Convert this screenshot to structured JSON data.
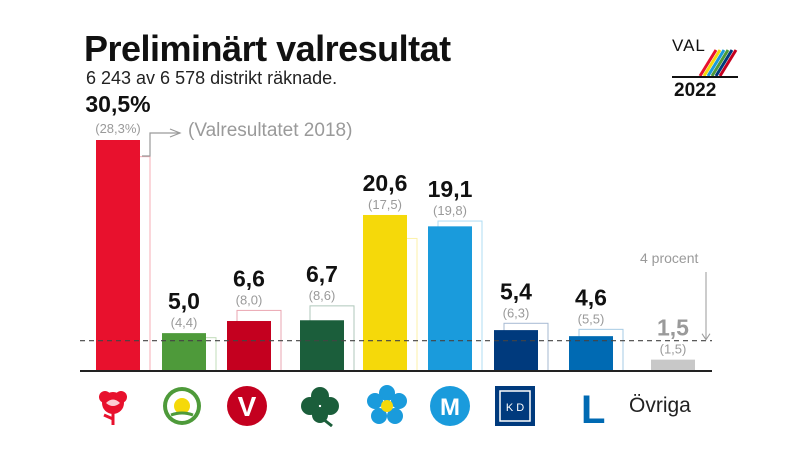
{
  "title": "Preliminärt valresultat",
  "subtitle": "6 243 av 6 578 distrikt räknade.",
  "legend_note": "(Valresultatet 2018)",
  "threshold_label": "4 procent",
  "ovriga_label": "Övriga",
  "val_logo": {
    "word": "VAL",
    "year": "2022"
  },
  "colors": {
    "s": "#e8112d",
    "c": "#4e9a3a",
    "v": "#c4001f",
    "mp": "#1b5e3b",
    "sd": "#f5d90a",
    "m": "#1a9bdc",
    "kd": "#003a7d",
    "l": "#006ab3",
    "ovriga": "#c8c8c8",
    "old_gray": "#9a9a9a"
  },
  "chart_data": {
    "type": "bar",
    "title": "Preliminärt valresultat",
    "subtitle": "6 243 av 6 578 distrikt räknade.",
    "categories": [
      "S",
      "C",
      "V",
      "MP",
      "SD",
      "M",
      "KD",
      "L",
      "Övriga"
    ],
    "series": [
      {
        "name": "2022",
        "values": [
          30.5,
          5.0,
          6.6,
          6.7,
          20.6,
          19.1,
          5.4,
          4.6,
          1.5
        ]
      },
      {
        "name": "Valresultatet 2018",
        "values": [
          28.3,
          4.4,
          8.0,
          8.6,
          17.5,
          19.8,
          6.3,
          5.5,
          1.5
        ]
      }
    ],
    "value_labels": [
      "30,5%",
      "5,0",
      "6,6",
      "6,7",
      "20,6",
      "19,1",
      "5,4",
      "4,6",
      "1,5"
    ],
    "previous_labels": [
      "(28,3%)",
      "(4,4)",
      "(8,0)",
      "(8,6)",
      "(17,5)",
      "(19,8)",
      "(6,3)",
      "(5,5)",
      "(1,5)"
    ],
    "threshold": 4,
    "ylim": [
      0,
      31
    ],
    "xlabel": "",
    "ylabel": "",
    "grid": false
  },
  "party_logos": [
    {
      "name": "s-rose-logo",
      "letter": ""
    },
    {
      "name": "c-clover-logo",
      "letter": ""
    },
    {
      "name": "v-logo",
      "letter": "V"
    },
    {
      "name": "mp-clover-logo",
      "letter": ""
    },
    {
      "name": "sd-flower-logo",
      "letter": ""
    },
    {
      "name": "m-logo",
      "letter": "M"
    },
    {
      "name": "kd-logo",
      "letter": "K D"
    },
    {
      "name": "l-logo",
      "letter": "L"
    }
  ]
}
